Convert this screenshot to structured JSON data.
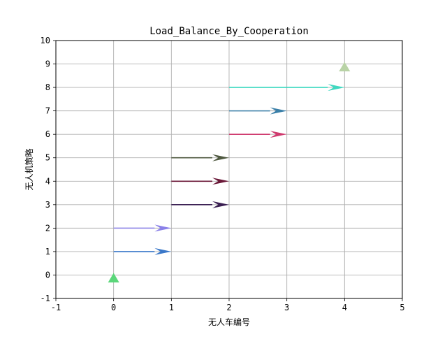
{
  "chart_data": {
    "type": "scatter",
    "title": "Load_Balance_By_Cooperation",
    "xlabel": "无人车编号",
    "ylabel": "无人机策略",
    "xlim": [
      -1,
      5
    ],
    "ylim": [
      -1,
      10
    ],
    "xticks": [
      "-1",
      "0",
      "1",
      "2",
      "3",
      "4",
      "5"
    ],
    "yticks": [
      "-1",
      "0",
      "1",
      "2",
      "3",
      "4",
      "5",
      "6",
      "7",
      "8",
      "9",
      "10"
    ],
    "grid": true,
    "arrows": [
      {
        "x": 0,
        "y": 1,
        "dx": 1,
        "dy": 0,
        "color": "#3a78c9"
      },
      {
        "x": 0,
        "y": 2,
        "dx": 1,
        "dy": 0,
        "color": "#8a80e8"
      },
      {
        "x": 1,
        "y": 3,
        "dx": 1,
        "dy": 0,
        "color": "#3a1f52"
      },
      {
        "x": 1,
        "y": 4,
        "dx": 1,
        "dy": 0,
        "color": "#6b1838"
      },
      {
        "x": 1,
        "y": 5,
        "dx": 1,
        "dy": 0,
        "color": "#4f5940"
      },
      {
        "x": 2,
        "y": 6,
        "dx": 1,
        "dy": 0,
        "color": "#cf3a6e"
      },
      {
        "x": 2,
        "y": 7,
        "dx": 1,
        "dy": 0,
        "color": "#3a7fa8"
      },
      {
        "x": 2,
        "y": 8,
        "dx": 2,
        "dy": 0,
        "color": "#3fd8c0"
      }
    ],
    "markers": [
      {
        "x": 0,
        "y": -0.15,
        "shape": "triangle",
        "color": "#5bd77a"
      },
      {
        "x": 4,
        "y": 8.85,
        "shape": "triangle",
        "color": "#b9d3a6"
      }
    ]
  }
}
